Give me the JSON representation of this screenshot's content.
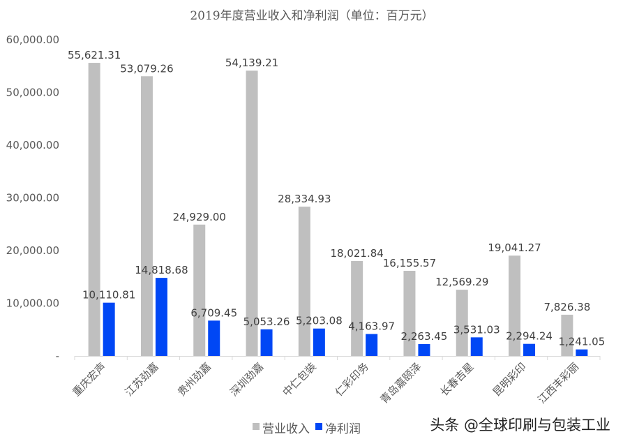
{
  "chart_data": {
    "type": "bar",
    "title": "2019年度营业收入和净利润（单位：百万元）",
    "categories": [
      "重庆宏声",
      "江苏劲嘉",
      "贵州劲嘉",
      "深圳劲嘉",
      "中仁包装",
      "仁彩印务",
      "青岛嘉颐泽",
      "长春吉星",
      "昆明彩印",
      "江西丰彩丽"
    ],
    "series": [
      {
        "name": "营业收入",
        "color": "#bfbfbf",
        "values": [
          55621.31,
          53079.26,
          24929.0,
          54139.21,
          28334.93,
          18021.84,
          16155.57,
          12569.29,
          19041.27,
          7826.38
        ],
        "labels": [
          "55,621.31",
          "53,079.26",
          "24,929.00",
          "54,139.21",
          "28,334.93",
          "18,021.84",
          "16,155.57",
          "12,569.29",
          "19,041.27",
          "7,826.38"
        ]
      },
      {
        "name": "净利润",
        "color": "#0047f5",
        "values": [
          10110.81,
          14818.68,
          6709.45,
          5053.26,
          5203.08,
          4163.97,
          2263.45,
          3531.03,
          2294.24,
          1241.05
        ],
        "labels": [
          "10,110.81",
          "14,818.68",
          "6,709.45",
          "5,053.26",
          "5,203.08",
          "4,163.97",
          "2,263.45",
          "3,531.03",
          "2,294.24",
          "1,241.05"
        ]
      }
    ],
    "ylim": [
      0,
      60000
    ],
    "yticks": [
      0,
      10000,
      20000,
      30000,
      40000,
      50000,
      60000
    ],
    "ytick_labels": [
      "-",
      "10,000.00",
      "20,000.00",
      "30,000.00",
      "40,000.00",
      "50,000.00",
      "60,000.00"
    ],
    "grid": false,
    "legend": "bottom"
  },
  "watermark": "头条 @全球印刷与包装工业"
}
